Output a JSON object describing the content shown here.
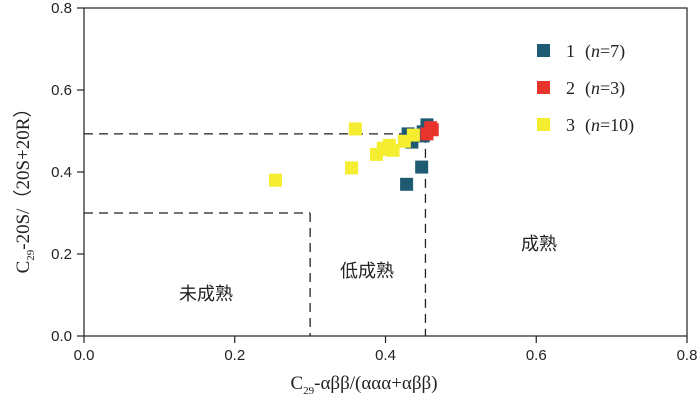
{
  "chart_data": {
    "type": "scatter",
    "xlim": [
      0,
      0.8
    ],
    "ylim": [
      0,
      0.8
    ],
    "x_ticks": [
      "0.0",
      "0.2",
      "0.4",
      "0.6",
      "0.8"
    ],
    "y_ticks": [
      "0.0",
      "0.2",
      "0.4",
      "0.6",
      "0.8"
    ],
    "xlabel": {
      "prefix": "C",
      "subscript": "29",
      "suffix": "-αββ/(ααα+αββ)"
    },
    "ylabel": {
      "prefix": "C",
      "subscript": "29",
      "suffix": "-20S/（20S+20R）"
    },
    "series": [
      {
        "name": "1",
        "n_text": "n",
        "n_value": "=7",
        "color": "#1f5a73",
        "x": [
          0.455,
          0.43,
          0.435,
          0.45,
          0.45,
          0.428,
          0.448
        ],
        "y": [
          0.515,
          0.493,
          0.473,
          0.488,
          0.498,
          0.37,
          0.412
        ]
      },
      {
        "name": "2",
        "n_text": "n",
        "n_value": "=3",
        "color": "#e8352c",
        "x": [
          0.46,
          0.455,
          0.462
        ],
        "y": [
          0.508,
          0.493,
          0.503
        ]
      },
      {
        "name": "3",
        "n_text": "n",
        "n_value": "=10",
        "color": "#f4ed30",
        "x": [
          0.254,
          0.355,
          0.36,
          0.388,
          0.397,
          0.405,
          0.402,
          0.41,
          0.437,
          0.425
        ],
        "y": [
          0.38,
          0.41,
          0.505,
          0.443,
          0.458,
          0.465,
          0.455,
          0.453,
          0.49,
          0.475
        ]
      }
    ],
    "boundaries": {
      "immature_x": 0.3,
      "immature_y": 0.3,
      "low_mature_x": 0.453,
      "low_mature_y": 0.493
    },
    "regions": {
      "immature": "未成熟",
      "low_mature": "低成熟",
      "mature": "成熟"
    }
  }
}
